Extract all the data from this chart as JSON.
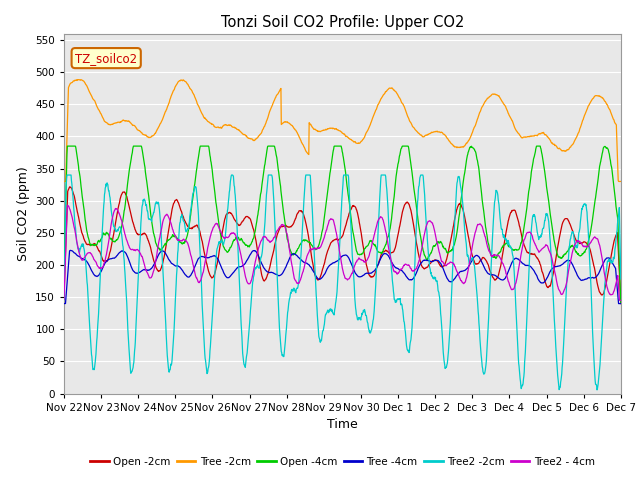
{
  "title": "Tonzi Soil CO2 Profile: Upper CO2",
  "xlabel": "Time",
  "ylabel": "Soil CO2 (ppm)",
  "ylim": [
    0,
    560
  ],
  "yticks": [
    0,
    50,
    100,
    150,
    200,
    250,
    300,
    350,
    400,
    450,
    500,
    550
  ],
  "legend_label": "TZ_soilco2",
  "series_labels": [
    "Open -2cm",
    "Tree -2cm",
    "Open -4cm",
    "Tree -4cm",
    "Tree2 -2cm",
    "Tree2 - 4cm"
  ],
  "series_colors": [
    "#cc0000",
    "#ff9900",
    "#00cc00",
    "#0000cc",
    "#00cccc",
    "#cc00cc"
  ],
  "background_color": "#ffffff",
  "plot_bg_color": "#e8e8e8",
  "grid_color": "#ffffff"
}
